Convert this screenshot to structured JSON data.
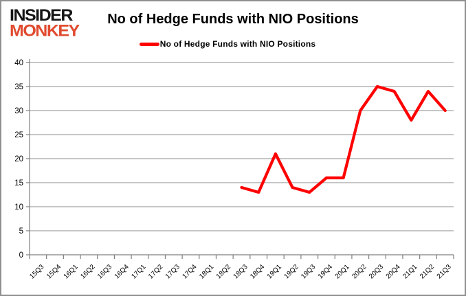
{
  "logo": {
    "line1": "INSIDER",
    "line2": "MONKEY",
    "line1_color": "#151515",
    "line2_color": "#e04b2f"
  },
  "header": {
    "title": "No of Hedge Funds with NIO Positions"
  },
  "legend": {
    "label": "No of Hedge Funds with NIO Positions",
    "line_color": "#ff0000"
  },
  "chart_data": {
    "type": "line",
    "title": "No of Hedge Funds with NIO Positions",
    "categories": [
      "15Q3",
      "15Q4",
      "16Q1",
      "16Q2",
      "16Q3",
      "16Q4",
      "17Q1",
      "17Q2",
      "17Q3",
      "17Q4",
      "18Q1",
      "18Q2",
      "18Q3",
      "18Q4",
      "19Q1",
      "19Q2",
      "19Q3",
      "19Q4",
      "20Q1",
      "20Q2",
      "20Q3",
      "20Q4",
      "21Q1",
      "21Q2",
      "21Q3"
    ],
    "series": [
      {
        "name": "No of Hedge Funds with NIO Positions",
        "color": "#ff0000",
        "x": [
          "18Q3",
          "18Q4",
          "19Q1",
          "19Q2",
          "19Q3",
          "19Q4",
          "20Q1",
          "20Q2",
          "20Q3",
          "20Q4",
          "21Q1",
          "21Q2",
          "21Q3"
        ],
        "values": [
          14,
          13,
          21,
          14,
          13,
          16,
          16,
          30,
          35,
          34,
          28,
          34,
          30
        ]
      }
    ],
    "xlabel": "",
    "ylabel": "",
    "ylim": [
      0,
      40
    ],
    "ytick_step": 5,
    "yticks": [
      0,
      5,
      10,
      15,
      20,
      25,
      30,
      35,
      40
    ],
    "grid": true,
    "grid_color": "#8c8c8c",
    "axis_color": "#7f7f7f",
    "tick_label_color": "#000000",
    "legend_position": "top-center",
    "line_width": 4.2
  }
}
